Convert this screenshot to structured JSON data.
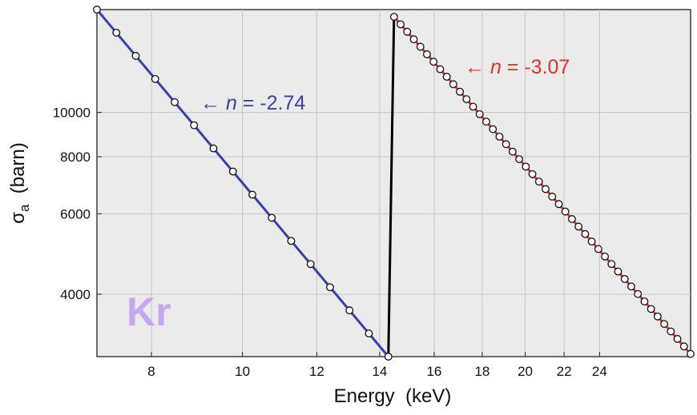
{
  "chart_data": {
    "type": "line",
    "title": "",
    "xlabel": "Energy  (keV)",
    "ylabel": "σ",
    "ylabel_subscript": "a",
    "ylabel_unit": "(barn)",
    "xscale": "log",
    "yscale": "log",
    "xlim": [
      7.0,
      30.0
    ],
    "ylim": [
      2920,
      16800
    ],
    "grid": true,
    "x_ticks": [
      8,
      10,
      12,
      14,
      16,
      18,
      20,
      22,
      24
    ],
    "y_ticks": [
      4000,
      6000,
      8000,
      10000
    ],
    "element_label": "Kr",
    "series": [
      {
        "color": "#3a3fb0",
        "x_start": 7.0,
        "x_end": 14.3,
        "y_start": 16800,
        "y_end": 2920,
        "exponent": -2.74,
        "points": 16,
        "annotation_prefix": "← ",
        "annotation_italic": "n",
        "annotation_value": " = -2.74"
      },
      {
        "color": "#e03030",
        "x_start": 14.5,
        "x_end": 30.0,
        "y_start": 16200,
        "y_end": 2960,
        "exponent": -3.07,
        "points": 46,
        "annotation_prefix": "← ",
        "annotation_italic": "n",
        "annotation_value": " = -3.07"
      }
    ],
    "edge_color": "#000000",
    "edge_x": [
      14.3,
      14.5
    ]
  }
}
